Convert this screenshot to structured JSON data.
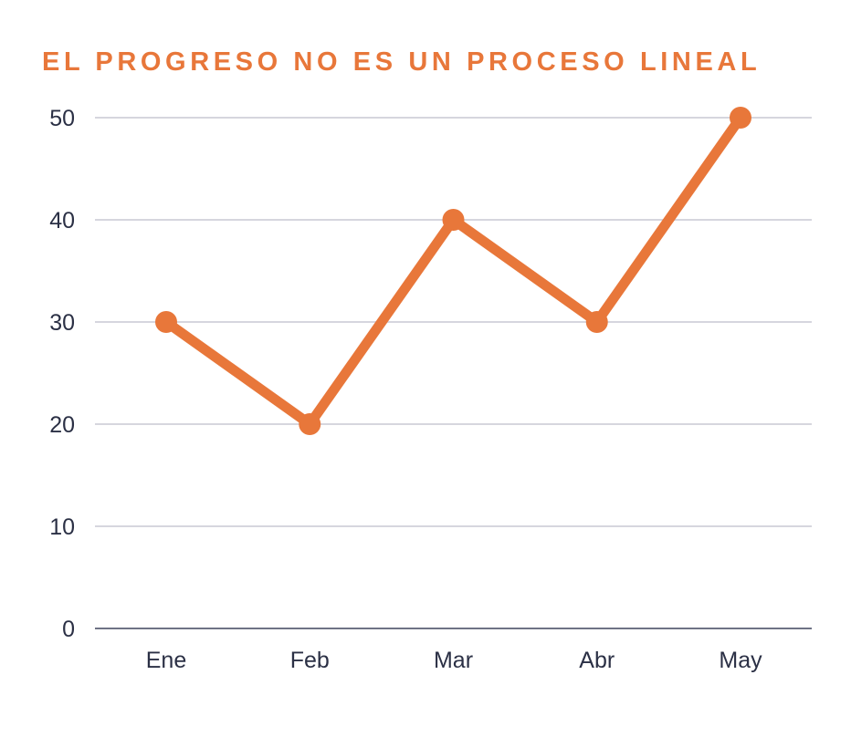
{
  "chart_data": {
    "type": "line",
    "title": "EL PROGRESO NO ES UN PROCESO LINEAL",
    "xlabel": "",
    "ylabel": "",
    "categories": [
      "Ene",
      "Feb",
      "Mar",
      "Abr",
      "May"
    ],
    "series": [
      {
        "values": [
          30,
          20,
          40,
          30,
          50
        ]
      }
    ],
    "ylim": [
      0,
      50
    ],
    "yticks": [
      "0",
      "10",
      "20",
      "30",
      "40",
      "50"
    ],
    "grid": true,
    "legend": "none",
    "colors": {
      "line": "#E8773A",
      "title": "#E8773A",
      "grid": "#D6D6DE",
      "axis": "#6E7385",
      "text": "#2B3045"
    }
  }
}
